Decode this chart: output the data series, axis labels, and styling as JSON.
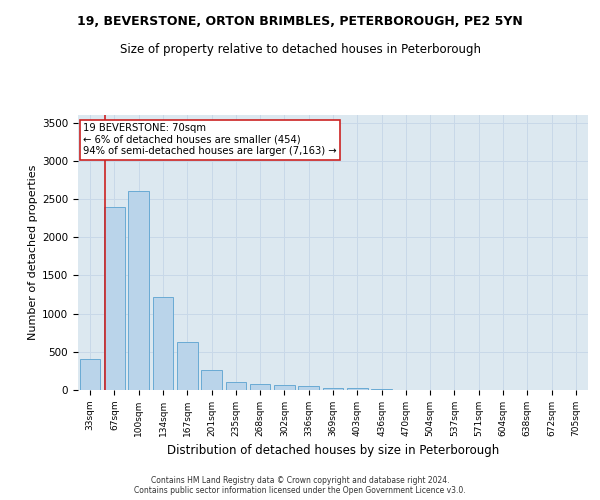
{
  "title1": "19, BEVERSTONE, ORTON BRIMBLES, PETERBOROUGH, PE2 5YN",
  "title2": "Size of property relative to detached houses in Peterborough",
  "xlabel": "Distribution of detached houses by size in Peterborough",
  "ylabel": "Number of detached properties",
  "categories": [
    "33sqm",
    "67sqm",
    "100sqm",
    "134sqm",
    "167sqm",
    "201sqm",
    "235sqm",
    "268sqm",
    "302sqm",
    "336sqm",
    "369sqm",
    "403sqm",
    "436sqm",
    "470sqm",
    "504sqm",
    "537sqm",
    "571sqm",
    "604sqm",
    "638sqm",
    "672sqm",
    "705sqm"
  ],
  "values": [
    400,
    2400,
    2600,
    1220,
    630,
    260,
    100,
    80,
    70,
    50,
    30,
    20,
    10,
    5,
    3,
    2,
    1,
    1,
    0,
    0,
    0
  ],
  "bar_color": "#bad4ea",
  "bar_edge_color": "#6aaad4",
  "highlight_color": "#cc2222",
  "annotation_title": "19 BEVERSTONE: 70sqm",
  "annotation_line1": "← 6% of detached houses are smaller (454)",
  "annotation_line2": "94% of semi-detached houses are larger (7,163) →",
  "annotation_box_color": "#ffffff",
  "annotation_box_edge": "#cc2222",
  "ylim": [
    0,
    3600
  ],
  "yticks": [
    0,
    500,
    1000,
    1500,
    2000,
    2500,
    3000,
    3500
  ],
  "grid_color": "#c8d8e8",
  "background_color": "#dce8f0",
  "footer1": "Contains HM Land Registry data © Crown copyright and database right 2024.",
  "footer2": "Contains public sector information licensed under the Open Government Licence v3.0."
}
